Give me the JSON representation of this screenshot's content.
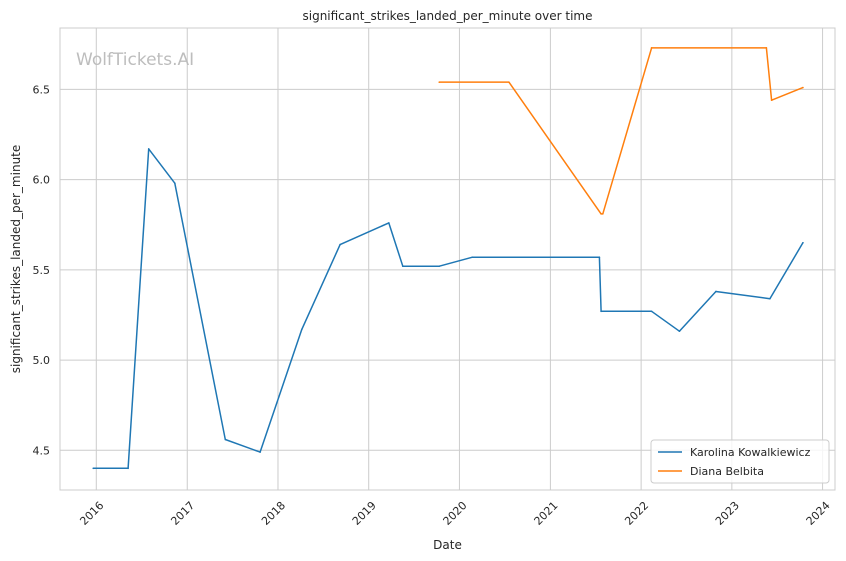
{
  "chart_data": {
    "type": "line",
    "title": "significant_strikes_landed_per_minute over time",
    "xlabel": "Date",
    "ylabel": "significant_strikes_landed_per_minute",
    "watermark": "WolfTickets.AI",
    "grid": true,
    "legend_position": "bottom-right",
    "xlim": [
      "2015-08-08",
      "2024-02-20"
    ],
    "ylim": [
      4.28,
      6.84
    ],
    "x_ticks": [
      {
        "date": "2016-01-01",
        "label": "2016"
      },
      {
        "date": "2017-01-01",
        "label": "2017"
      },
      {
        "date": "2018-01-01",
        "label": "2018"
      },
      {
        "date": "2019-01-01",
        "label": "2019"
      },
      {
        "date": "2020-01-01",
        "label": "2020"
      },
      {
        "date": "2021-01-01",
        "label": "2021"
      },
      {
        "date": "2022-01-01",
        "label": "2022"
      },
      {
        "date": "2023-01-01",
        "label": "2023"
      },
      {
        "date": "2024-01-01",
        "label": "2024"
      }
    ],
    "y_ticks": [
      {
        "value": 4.5,
        "label": "4.5"
      },
      {
        "value": 5.0,
        "label": "5.0"
      },
      {
        "value": 5.5,
        "label": "5.5"
      },
      {
        "value": 6.0,
        "label": "6.0"
      },
      {
        "value": 6.5,
        "label": "6.5"
      }
    ],
    "series": [
      {
        "name": "Karolina Kowalkiewicz",
        "color": "#1f77b4",
        "points": [
          {
            "x": "2015-12-20",
            "y": 4.4
          },
          {
            "x": "2016-05-08",
            "y": 4.4
          },
          {
            "x": "2016-07-30",
            "y": 6.17
          },
          {
            "x": "2016-11-12",
            "y": 5.98
          },
          {
            "x": "2017-06-03",
            "y": 4.56
          },
          {
            "x": "2017-10-21",
            "y": 4.49
          },
          {
            "x": "2018-04-07",
            "y": 5.17
          },
          {
            "x": "2018-09-08",
            "y": 5.64
          },
          {
            "x": "2019-03-23",
            "y": 5.76
          },
          {
            "x": "2019-05-18",
            "y": 5.52
          },
          {
            "x": "2019-10-12",
            "y": 5.52
          },
          {
            "x": "2020-02-22",
            "y": 5.57
          },
          {
            "x": "2021-07-17",
            "y": 5.57
          },
          {
            "x": "2021-07-24",
            "y": 5.27
          },
          {
            "x": "2022-02-12",
            "y": 5.27
          },
          {
            "x": "2022-06-04",
            "y": 5.16
          },
          {
            "x": "2022-10-29",
            "y": 5.38
          },
          {
            "x": "2023-06-03",
            "y": 5.34
          },
          {
            "x": "2023-10-14",
            "y": 5.65
          }
        ]
      },
      {
        "name": "Diana Belbita",
        "color": "#ff7f0e",
        "points": [
          {
            "x": "2019-10-12",
            "y": 6.54
          },
          {
            "x": "2020-07-18",
            "y": 6.54
          },
          {
            "x": "2021-07-24",
            "y": 5.81
          },
          {
            "x": "2021-07-31",
            "y": 5.81
          },
          {
            "x": "2022-02-12",
            "y": 6.73
          },
          {
            "x": "2023-05-20",
            "y": 6.73
          },
          {
            "x": "2023-06-10",
            "y": 6.44
          },
          {
            "x": "2023-10-14",
            "y": 6.51
          }
        ]
      }
    ]
  }
}
